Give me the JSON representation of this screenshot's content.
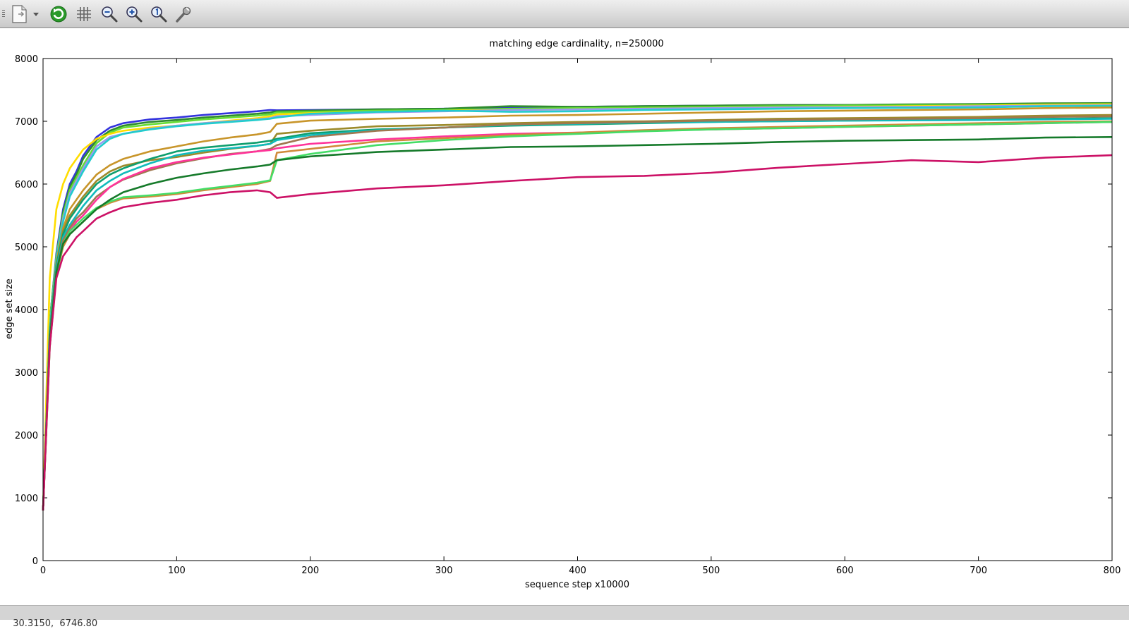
{
  "toolbar": {
    "buttons": [
      {
        "name": "export-button",
        "icon": "export-document-icon"
      },
      {
        "name": "export-menu-button",
        "icon": "chevron-down-icon"
      },
      {
        "name": "replot-button",
        "icon": "refresh-icon"
      },
      {
        "name": "toggle-grid-button",
        "icon": "grid-icon"
      },
      {
        "name": "previous-zoom-button",
        "icon": "zoom-out-icon"
      },
      {
        "name": "next-zoom-button",
        "icon": "zoom-in-icon"
      },
      {
        "name": "autoscale-button",
        "icon": "zoom-reset-icon"
      },
      {
        "name": "settings-button",
        "icon": "wrench-icon"
      }
    ]
  },
  "status": {
    "coords": "30.3150,  6746.80"
  },
  "chart_data": {
    "type": "line",
    "title": "matching edge cardinality, n=250000",
    "xlabel": "sequence step x10000",
    "ylabel": "edge set size",
    "xlim": [
      0,
      800
    ],
    "ylim": [
      0,
      8000
    ],
    "xticks": [
      0,
      100,
      200,
      300,
      400,
      500,
      600,
      700,
      800
    ],
    "yticks": [
      0,
      1000,
      2000,
      3000,
      4000,
      5000,
      6000,
      7000,
      8000
    ],
    "grid": false,
    "legend": "none",
    "series": [
      {
        "color": "#3333dd",
        "x": [
          0,
          5,
          10,
          15,
          20,
          25,
          30,
          40,
          50,
          60,
          80,
          100,
          120,
          140,
          160,
          170,
          175,
          200,
          250,
          300,
          350,
          400,
          450,
          500,
          550,
          600,
          650,
          700,
          750,
          800
        ],
        "values": [
          800,
          3800,
          4900,
          5600,
          6000,
          6200,
          6450,
          6750,
          6900,
          6970,
          7030,
          7060,
          7100,
          7130,
          7160,
          7180,
          7175,
          7180,
          7190,
          7200,
          7220,
          7230,
          7240,
          7250,
          7255,
          7260,
          7265,
          7270,
          7275,
          7280
        ]
      },
      {
        "color": "#2e8b2e",
        "x": [
          0,
          5,
          10,
          15,
          20,
          25,
          30,
          40,
          50,
          60,
          80,
          100,
          120,
          140,
          160,
          170,
          175,
          200,
          250,
          300,
          350,
          400,
          450,
          500,
          550,
          600,
          650,
          700,
          750,
          800
        ],
        "values": [
          800,
          3800,
          4850,
          5550,
          5950,
          6150,
          6400,
          6700,
          6850,
          6930,
          6990,
          7020,
          7060,
          7090,
          7120,
          7140,
          7160,
          7170,
          7190,
          7200,
          7240,
          7230,
          7240,
          7250,
          7260,
          7260,
          7270,
          7275,
          7285,
          7290
        ]
      },
      {
        "color": "#66dd33",
        "x": [
          0,
          5,
          10,
          15,
          20,
          25,
          30,
          40,
          50,
          60,
          80,
          100,
          120,
          140,
          160,
          170,
          175,
          200,
          250,
          300,
          350,
          400,
          450,
          500,
          550,
          600,
          650,
          700,
          750,
          800
        ],
        "values": [
          800,
          3800,
          4850,
          5500,
          5900,
          6100,
          6300,
          6650,
          6820,
          6900,
          6950,
          6990,
          7030,
          7060,
          7090,
          7110,
          7140,
          7150,
          7170,
          7180,
          7200,
          7210,
          7220,
          7230,
          7240,
          7250,
          7255,
          7260,
          7270,
          7275
        ]
      },
      {
        "color": "#ffdd00",
        "x": [
          0,
          5,
          10,
          15,
          20,
          25,
          30,
          40,
          50,
          60,
          80,
          100,
          120,
          140,
          160,
          170,
          175,
          200,
          250,
          300,
          350,
          400,
          450,
          500,
          550,
          600,
          650,
          700,
          750,
          800
        ],
        "values": [
          800,
          4500,
          5600,
          6000,
          6250,
          6400,
          6550,
          6720,
          6800,
          6850,
          6900,
          6930,
          6970,
          7010,
          7050,
          7080,
          7110,
          7130,
          7150,
          7170,
          7180,
          7190,
          7200,
          7210,
          7220,
          7230,
          7240,
          7250,
          7265,
          7270
        ]
      },
      {
        "color": "#9999ee",
        "x": [
          0,
          5,
          10,
          15,
          20,
          25,
          30,
          40,
          50,
          60,
          80,
          100,
          120,
          140,
          160,
          170,
          175,
          200,
          250,
          300,
          350,
          400,
          450,
          500,
          550,
          600,
          650,
          700,
          750,
          800
        ],
        "values": [
          800,
          3700,
          4800,
          5450,
          5850,
          6050,
          6250,
          6600,
          6750,
          6800,
          6880,
          6930,
          6970,
          7000,
          7030,
          7050,
          7080,
          7100,
          7140,
          7160,
          7180,
          7190,
          7200,
          7210,
          7220,
          7225,
          7230,
          7240,
          7250,
          7255
        ]
      },
      {
        "color": "#22cccc",
        "x": [
          0,
          5,
          10,
          15,
          20,
          25,
          30,
          40,
          50,
          60,
          80,
          100,
          120,
          140,
          160,
          170,
          175,
          200,
          250,
          300,
          350,
          400,
          450,
          500,
          550,
          600,
          650,
          700,
          750,
          800
        ],
        "values": [
          800,
          3700,
          4800,
          5400,
          5800,
          6000,
          6200,
          6550,
          6720,
          6800,
          6870,
          6920,
          6960,
          6990,
          7020,
          7040,
          7060,
          7120,
          7150,
          7170,
          7150,
          7160,
          7180,
          7190,
          7200,
          7210,
          7215,
          7220,
          7240,
          7245
        ]
      },
      {
        "color": "#c8952a",
        "x": [
          0,
          5,
          10,
          15,
          20,
          25,
          30,
          40,
          50,
          60,
          80,
          100,
          120,
          140,
          160,
          170,
          175,
          200,
          250,
          300,
          350,
          400,
          450,
          500,
          550,
          600,
          650,
          700,
          750,
          800
        ],
        "values": [
          800,
          3600,
          4750,
          5300,
          5600,
          5750,
          5900,
          6150,
          6300,
          6400,
          6520,
          6600,
          6680,
          6740,
          6790,
          6830,
          6960,
          7010,
          7040,
          7060,
          7090,
          7100,
          7120,
          7140,
          7160,
          7170,
          7180,
          7190,
          7210,
          7220
        ]
      },
      {
        "color": "#9c8a2a",
        "x": [
          0,
          5,
          10,
          15,
          20,
          25,
          30,
          40,
          50,
          60,
          80,
          100,
          120,
          140,
          160,
          170,
          175,
          200,
          250,
          300,
          350,
          400,
          450,
          500,
          550,
          600,
          650,
          700,
          750,
          800
        ],
        "values": [
          800,
          3600,
          4700,
          5250,
          5500,
          5650,
          5800,
          6050,
          6200,
          6290,
          6380,
          6430,
          6500,
          6560,
          6610,
          6640,
          6800,
          6850,
          6920,
          6940,
          6970,
          6990,
          7000,
          7020,
          7040,
          7050,
          7060,
          7070,
          7090,
          7100
        ]
      },
      {
        "color": "#0e9e6e",
        "x": [
          0,
          5,
          10,
          15,
          20,
          25,
          30,
          40,
          50,
          60,
          80,
          100,
          120,
          140,
          160,
          170,
          175,
          200,
          250,
          300,
          350,
          400,
          450,
          500,
          550,
          600,
          650,
          700,
          750,
          800
        ],
        "values": [
          800,
          3600,
          4700,
          5200,
          5450,
          5600,
          5750,
          6000,
          6150,
          6250,
          6400,
          6520,
          6580,
          6620,
          6660,
          6690,
          6720,
          6810,
          6870,
          6900,
          6930,
          6950,
          6970,
          6990,
          7000,
          7010,
          7020,
          7030,
          7040,
          7050
        ]
      },
      {
        "color": "#11bbbb",
        "x": [
          0,
          5,
          10,
          15,
          20,
          25,
          30,
          40,
          50,
          60,
          80,
          100,
          120,
          140,
          160,
          170,
          175,
          200,
          250,
          300,
          350,
          400,
          450,
          500,
          550,
          600,
          650,
          700,
          750,
          800
        ],
        "values": [
          800,
          3500,
          4650,
          5150,
          5350,
          5500,
          5650,
          5900,
          6050,
          6170,
          6330,
          6460,
          6530,
          6570,
          6610,
          6640,
          6700,
          6780,
          6860,
          6900,
          6940,
          6960,
          6980,
          6990,
          7000,
          7010,
          7015,
          7020,
          7030,
          7040
        ]
      },
      {
        "color": "#a07850",
        "x": [
          0,
          5,
          10,
          15,
          20,
          25,
          30,
          40,
          50,
          60,
          80,
          100,
          120,
          140,
          160,
          170,
          175,
          200,
          250,
          300,
          350,
          400,
          450,
          500,
          550,
          600,
          650,
          700,
          750,
          800
        ],
        "values": [
          800,
          3500,
          4600,
          5100,
          5300,
          5450,
          5550,
          5800,
          5950,
          6070,
          6220,
          6330,
          6410,
          6480,
          6520,
          6560,
          6620,
          6750,
          6850,
          6900,
          6950,
          6970,
          6990,
          7010,
          7020,
          7030,
          7040,
          7050,
          7070,
          7080
        ]
      },
      {
        "color": "#ff3399",
        "x": [
          0,
          5,
          10,
          15,
          20,
          25,
          30,
          40,
          50,
          60,
          80,
          100,
          120,
          140,
          160,
          170,
          175,
          200,
          250,
          300,
          350,
          400,
          450,
          500,
          550,
          600,
          650,
          700,
          750,
          800
        ],
        "values": [
          800,
          3500,
          4600,
          5050,
          5250,
          5400,
          5500,
          5750,
          5950,
          6080,
          6250,
          6350,
          6420,
          6470,
          6520,
          6540,
          6570,
          6640,
          6710,
          6760,
          6800,
          6820,
          6850,
          6870,
          6890,
          6910,
          6930,
          6950,
          6970,
          6990
        ]
      },
      {
        "color": "#d08a3a",
        "x": [
          0,
          5,
          10,
          15,
          20,
          25,
          30,
          40,
          50,
          60,
          80,
          100,
          120,
          140,
          160,
          170,
          175,
          200,
          250,
          300,
          350,
          400,
          450,
          500,
          550,
          600,
          650,
          700,
          750,
          800
        ],
        "values": [
          800,
          3400,
          4550,
          5000,
          5200,
          5300,
          5400,
          5600,
          5700,
          5770,
          5800,
          5840,
          5900,
          5950,
          6000,
          6050,
          6500,
          6560,
          6680,
          6730,
          6780,
          6820,
          6860,
          6890,
          6910,
          6930,
          6950,
          6970,
          6990,
          7000
        ]
      },
      {
        "color": "#44dd66",
        "x": [
          0,
          5,
          10,
          15,
          20,
          25,
          30,
          40,
          50,
          60,
          80,
          100,
          120,
          140,
          160,
          170,
          175,
          200,
          250,
          300,
          350,
          400,
          450,
          500,
          550,
          600,
          650,
          700,
          750,
          800
        ],
        "values": [
          800,
          3400,
          4550,
          5050,
          5250,
          5350,
          5450,
          5620,
          5720,
          5790,
          5820,
          5860,
          5920,
          5970,
          6020,
          6060,
          6380,
          6480,
          6620,
          6700,
          6760,
          6800,
          6840,
          6870,
          6890,
          6910,
          6930,
          6950,
          6970,
          6990
        ]
      },
      {
        "color": "#157a2a",
        "x": [
          0,
          5,
          10,
          15,
          20,
          25,
          30,
          40,
          50,
          60,
          80,
          100,
          120,
          140,
          160,
          170,
          175,
          200,
          250,
          300,
          350,
          400,
          450,
          500,
          550,
          600,
          650,
          700,
          750,
          800
        ],
        "values": [
          800,
          3500,
          4600,
          5050,
          5200,
          5300,
          5400,
          5600,
          5750,
          5870,
          6000,
          6100,
          6170,
          6230,
          6280,
          6310,
          6380,
          6440,
          6510,
          6550,
          6590,
          6600,
          6620,
          6640,
          6670,
          6690,
          6700,
          6710,
          6740,
          6750
        ]
      },
      {
        "color": "#cc1166",
        "x": [
          0,
          5,
          10,
          15,
          20,
          25,
          30,
          40,
          50,
          60,
          80,
          100,
          120,
          140,
          160,
          170,
          175,
          200,
          250,
          300,
          350,
          400,
          450,
          500,
          550,
          600,
          650,
          700,
          750,
          800
        ],
        "values": [
          800,
          3400,
          4500,
          4850,
          5000,
          5150,
          5250,
          5450,
          5550,
          5630,
          5700,
          5750,
          5820,
          5870,
          5900,
          5870,
          5780,
          5840,
          5930,
          5980,
          6050,
          6110,
          6130,
          6180,
          6260,
          6320,
          6380,
          6350,
          6420,
          6460
        ]
      }
    ]
  }
}
